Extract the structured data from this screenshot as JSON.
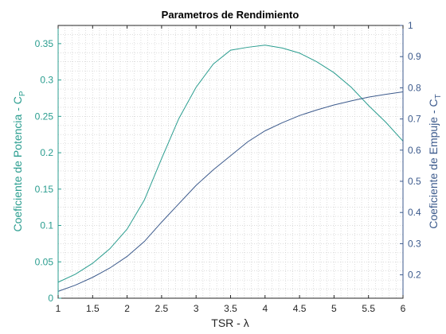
{
  "chart_data": {
    "type": "line",
    "title": "Parametros de Rendimiento",
    "xlabel": "TSR - λ",
    "ylabel_left": {
      "text": "Coeficiente de Potencia - C",
      "sub": "P"
    },
    "ylabel_right": {
      "text": "Coeficiente de Empuje - C",
      "sub": "T"
    },
    "xlim": [
      1,
      6
    ],
    "ylim_left": [
      0,
      0.375
    ],
    "ylim_right": [
      0.125,
      1
    ],
    "x_ticks": [
      "1",
      "1.5",
      "2",
      "2.5",
      "3",
      "3.5",
      "4",
      "4.5",
      "5",
      "5.5",
      "6"
    ],
    "y_left_ticks": [
      "0",
      "0.05",
      "0.1",
      "0.15",
      "0.2",
      "0.25",
      "0.3",
      "0.35"
    ],
    "y_right_ticks": [
      "0.2",
      "0.3",
      "0.4",
      "0.5",
      "0.6",
      "0.7",
      "0.8",
      "0.9",
      "1"
    ],
    "grid": "minor-dotted",
    "colors": {
      "left_axis": "#2a9d8f",
      "right_axis": "#3c5a8c"
    },
    "series": [
      {
        "axis": "left",
        "color": "#2a9d8f",
        "x": [
          1,
          1.25,
          1.5,
          1.75,
          2,
          2.25,
          2.5,
          2.75,
          3,
          3.25,
          3.5,
          3.75,
          4,
          4.25,
          4.5,
          4.75,
          5,
          5.25,
          5.5,
          5.75,
          6
        ],
        "y": [
          0.022,
          0.033,
          0.048,
          0.068,
          0.095,
          0.135,
          0.192,
          0.247,
          0.29,
          0.322,
          0.341,
          0.345,
          0.348,
          0.344,
          0.337,
          0.325,
          0.31,
          0.29,
          0.265,
          0.242,
          0.216
        ]
      },
      {
        "axis": "right",
        "color": "#3c5a8c",
        "x": [
          1,
          1.25,
          1.5,
          1.75,
          2,
          2.25,
          2.5,
          2.75,
          3,
          3.25,
          3.5,
          3.75,
          4,
          4.25,
          4.5,
          4.75,
          5,
          5.25,
          5.5,
          5.75,
          6
        ],
        "y": [
          0.147,
          0.167,
          0.192,
          0.222,
          0.259,
          0.307,
          0.369,
          0.428,
          0.487,
          0.537,
          0.582,
          0.627,
          0.662,
          0.688,
          0.711,
          0.729,
          0.745,
          0.758,
          0.77,
          0.779,
          0.787
        ]
      }
    ]
  }
}
